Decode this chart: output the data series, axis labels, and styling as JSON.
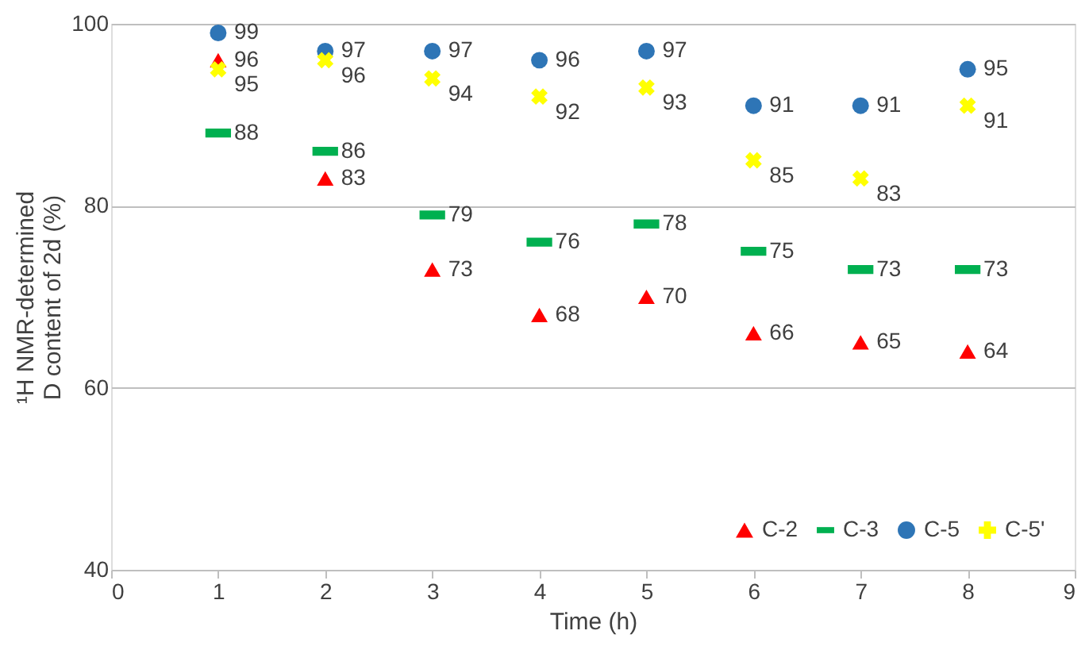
{
  "chart_data": {
    "type": "scatter",
    "xlabel": "Time (h)",
    "ylabel": "¹H NMR-determined\nD content of 2d (%)",
    "x": [
      1,
      2,
      3,
      4,
      5,
      6,
      7,
      8
    ],
    "series": [
      {
        "name": "C-2",
        "color": "#ff0000",
        "marker": "triangle",
        "values": [
          96,
          83,
          73,
          68,
          70,
          66,
          65,
          64
        ]
      },
      {
        "name": "C-3",
        "color": "#00b050",
        "marker": "square",
        "values": [
          88,
          86,
          79,
          76,
          78,
          75,
          73,
          73
        ]
      },
      {
        "name": "C-5",
        "color": "#2e75b6",
        "marker": "circle",
        "values": [
          99,
          97,
          97,
          96,
          97,
          91,
          91,
          95
        ]
      },
      {
        "name": "C-5'",
        "color": "#ffff00",
        "marker": "cross",
        "values": [
          95,
          96,
          94,
          92,
          93,
          85,
          83,
          91
        ]
      }
    ],
    "xlim": [
      0,
      9
    ],
    "xticks": [
      0,
      1,
      2,
      3,
      4,
      5,
      6,
      7,
      8,
      9
    ],
    "ylim": [
      40,
      100
    ],
    "yticks": [
      40,
      60,
      80,
      100
    ],
    "grid": "y",
    "legend": "bottom right",
    "data_labels": true
  }
}
